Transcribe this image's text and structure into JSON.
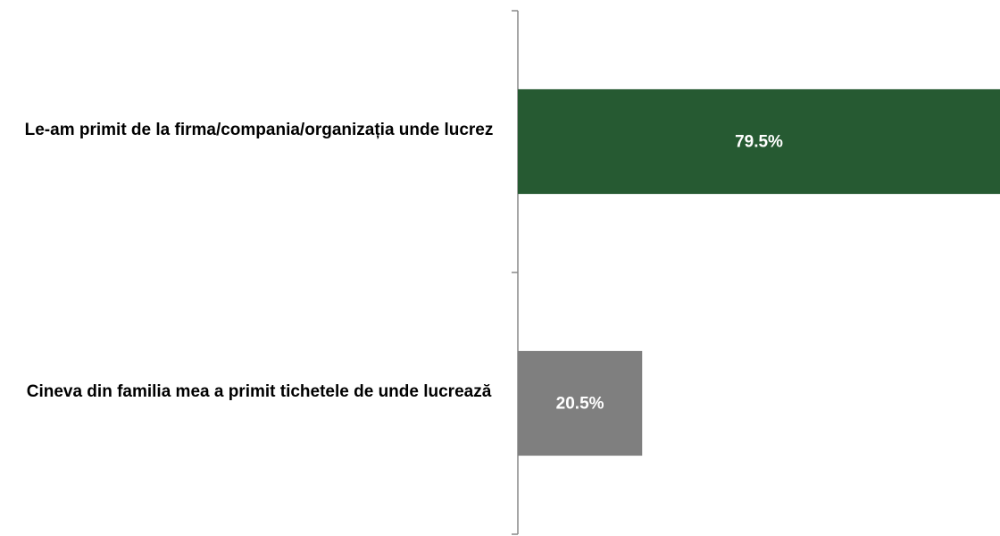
{
  "chart_data": {
    "type": "barh",
    "categories": [
      "Le-am primit de la firma/compania/organizația unde lucrez",
      "Cineva din familia mea a primit tichetele de unde lucrează"
    ],
    "values": [
      79.5,
      20.5
    ],
    "value_labels": [
      "79.5%",
      "20.5%"
    ],
    "colors": [
      "#265a32",
      "#7f7f7f"
    ],
    "xlim": [
      0,
      79.5
    ]
  }
}
